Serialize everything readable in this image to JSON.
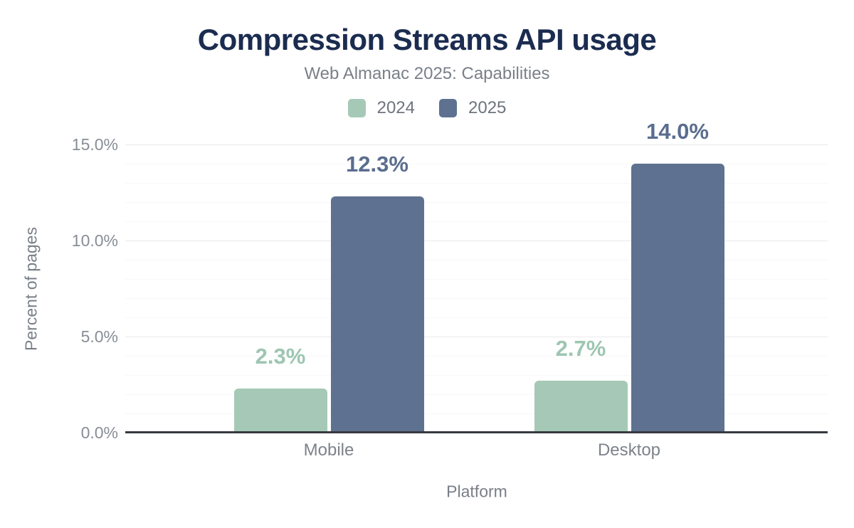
{
  "chart_data": {
    "type": "bar",
    "title": "Compression Streams API usage",
    "subtitle": "Web Almanac 2025: Capabilities",
    "xlabel": "Platform",
    "ylabel": "Percent of pages",
    "categories": [
      "Mobile",
      "Desktop"
    ],
    "series": [
      {
        "name": "2024",
        "color": "#a5c9b6",
        "label_color": "#9dc6b1",
        "values": [
          2.3,
          2.7
        ],
        "value_labels": [
          "2.3%",
          "2.7%"
        ]
      },
      {
        "name": "2025",
        "color": "#5e7190",
        "label_color": "#5a6d8e",
        "values": [
          12.3,
          14.0
        ],
        "value_labels": [
          "12.3%",
          "14.0%"
        ]
      }
    ],
    "ylim": [
      0,
      15
    ],
    "y_ticks": [
      {
        "value": 0,
        "label": "0.0%"
      },
      {
        "value": 5,
        "label": "5.0%"
      },
      {
        "value": 10,
        "label": "10.0%"
      },
      {
        "value": 15,
        "label": "15.0%"
      }
    ],
    "grid": {
      "minor_step_percent": 1,
      "major_step_percent": 5,
      "grid_on": true
    },
    "legend_position": "top",
    "colors": {
      "title": "#1b2c50",
      "subtitle": "#7a8089",
      "legend_text": "#6e747d",
      "tick_label": "#888d96",
      "axis_title": "#797e87",
      "category_label": "#7d828b",
      "axis_line": "#37393f",
      "major_gridline": "#e9e9e9",
      "minor_gridline": "#f7f7f7",
      "background": "#ffffff"
    }
  }
}
